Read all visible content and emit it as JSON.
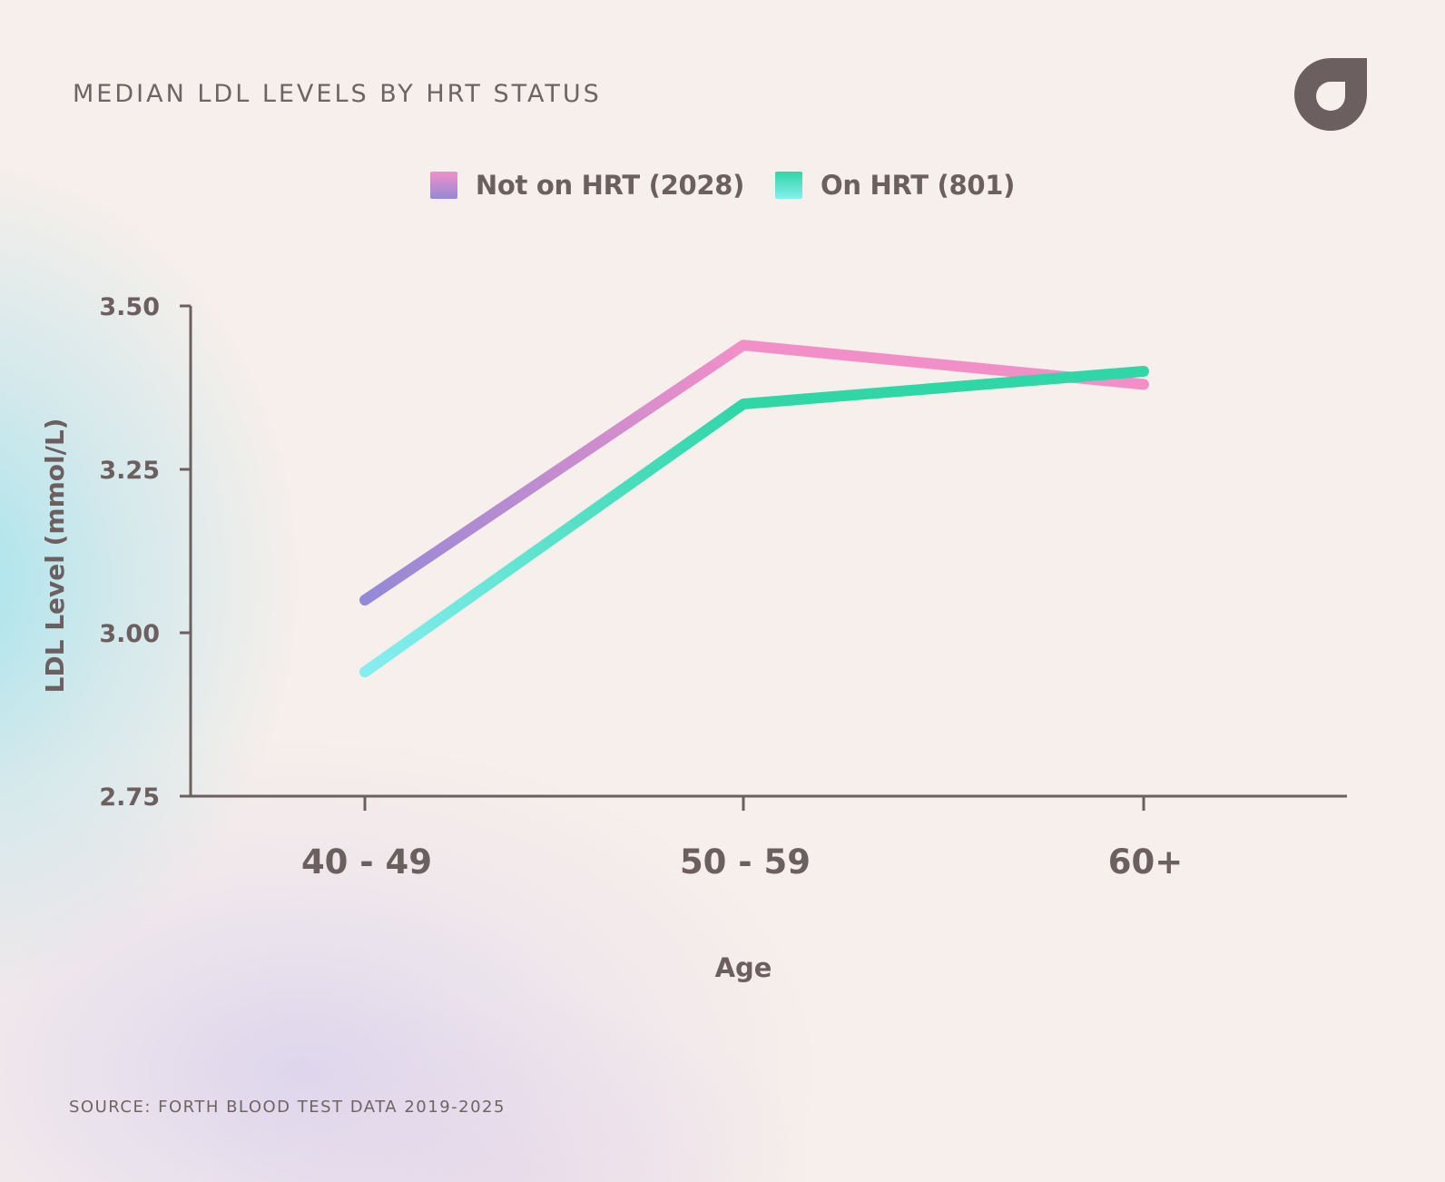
{
  "title": "MEDIAN LDL LEVELS BY HRT STATUS",
  "source": "SOURCE: FORTH BLOOD TEST DATA 2019-2025",
  "legend": {
    "position": "top-center",
    "items": [
      {
        "label": "Not on HRT (2028)",
        "color_from": "#f28fc8",
        "color_to": "#9489d6"
      },
      {
        "label": "On HRT (801)",
        "color_from": "#2fd6a6",
        "color_to": "#86eef0"
      }
    ]
  },
  "colors": {
    "text": "#6b5f60",
    "axis": "#6b5f60",
    "background": "#f6efeb",
    "logo": "#6b5f60"
  },
  "icons": {
    "logo": "forth-logo-icon"
  },
  "chart_data": {
    "type": "line",
    "title": "MEDIAN LDL LEVELS BY HRT STATUS",
    "xlabel": "Age",
    "ylabel": "LDL Level (mmol/L)",
    "categories": [
      "40 - 49",
      "50 - 59",
      "60+"
    ],
    "ylim": [
      2.75,
      3.5
    ],
    "yticks": [
      2.75,
      3.0,
      3.25,
      3.5
    ],
    "ytick_labels": [
      "2.75",
      "3.00",
      "3.25",
      "3.50"
    ],
    "grid": false,
    "series": [
      {
        "name": "Not on HRT (2028)",
        "values": [
          3.05,
          3.44,
          3.38
        ],
        "gradient": [
          "#9489d6",
          "#f28fc8"
        ]
      },
      {
        "name": "On HRT (801)",
        "values": [
          2.94,
          3.35,
          3.4
        ],
        "gradient": [
          "#86eef0",
          "#2fd6a6"
        ]
      }
    ]
  }
}
